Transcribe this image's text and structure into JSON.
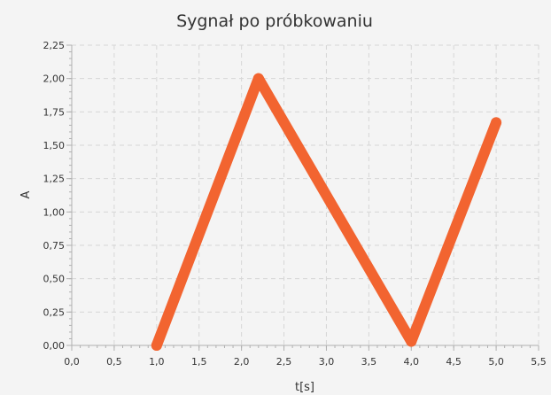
{
  "chart_data": {
    "type": "line",
    "title": "Sygnał po próbkowaniu",
    "xlabel": "t[s]",
    "ylabel": "A",
    "xlim": [
      0,
      5.5
    ],
    "ylim": [
      0,
      2.25
    ],
    "x_ticks": [
      "0,0",
      "0,5",
      "1,0",
      "1,5",
      "2,0",
      "2,5",
      "3,0",
      "3,5",
      "4,0",
      "4,5",
      "5,0",
      "5,5"
    ],
    "y_ticks": [
      "0,00",
      "0,25",
      "0,50",
      "0,75",
      "1,00",
      "1,25",
      "1,50",
      "1,75",
      "2,00",
      "2,25"
    ],
    "grid": true,
    "series": [
      {
        "color": "#f26430",
        "x": [
          1.0,
          2.2,
          4.0,
          5.0
        ],
        "y": [
          0.0,
          2.0,
          0.03,
          1.67
        ]
      }
    ]
  }
}
